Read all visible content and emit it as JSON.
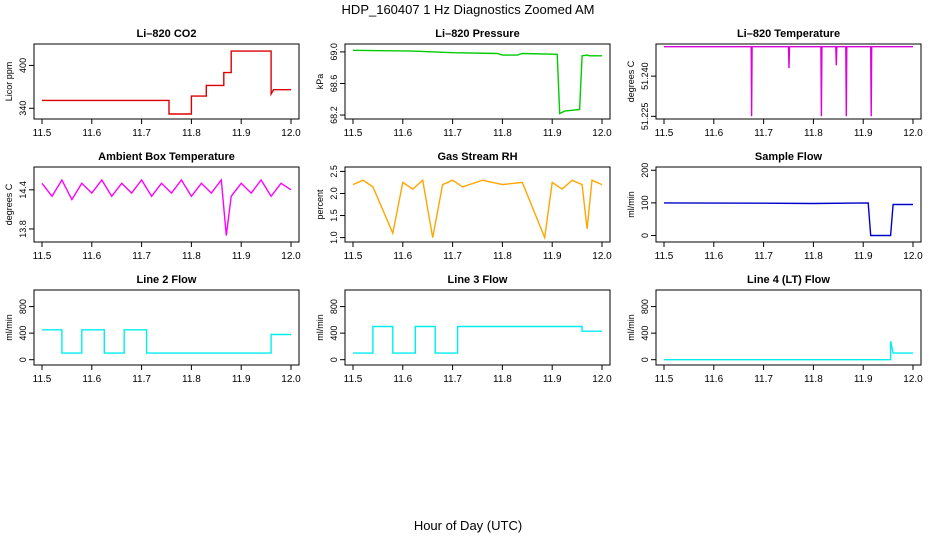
{
  "figure": {
    "title": "HDP_160407  1 Hz Diagnostics Zoomed AM",
    "xlabel": "Hour of Day (UTC)"
  },
  "chart_data": [
    {
      "type": "line",
      "title": "Li–820 CO2",
      "xlabel": "",
      "ylabel": "Licor ppm",
      "xlim": [
        11.5,
        12.0
      ],
      "ylim": [
        325,
        430
      ],
      "xticks": [
        "11.5",
        "11.6",
        "11.7",
        "11.8",
        "11.9",
        "12.0"
      ],
      "yticks": [
        "340",
        "400"
      ],
      "grid": false,
      "color": "#dd0000",
      "series": [
        {
          "points": [
            [
              11.5,
              351
            ],
            [
              11.755,
              351
            ],
            [
              11.755,
              332
            ],
            [
              11.8,
              332
            ],
            [
              11.8,
              357
            ],
            [
              11.83,
              357
            ],
            [
              11.83,
              372
            ],
            [
              11.865,
              372
            ],
            [
              11.865,
              390
            ],
            [
              11.88,
              390
            ],
            [
              11.88,
              420
            ],
            [
              11.96,
              420
            ],
            [
              11.96,
              360
            ],
            [
              11.965,
              366
            ],
            [
              12.0,
              366
            ]
          ]
        }
      ]
    },
    {
      "type": "line",
      "title": "Li–820 Pressure",
      "xlabel": "",
      "ylabel": "kPa",
      "xlim": [
        11.5,
        12.0
      ],
      "ylim": [
        68.15,
        69.1
      ],
      "xticks": [
        "11.5",
        "11.6",
        "11.7",
        "11.8",
        "11.9",
        "12.0"
      ],
      "yticks": [
        "68.2",
        "68.6",
        "69.0"
      ],
      "grid": false,
      "color": "#00cc00",
      "series": [
        {
          "points": [
            [
              11.5,
              69.02
            ],
            [
              11.62,
              69.01
            ],
            [
              11.7,
              68.99
            ],
            [
              11.79,
              68.98
            ],
            [
              11.8,
              68.96
            ],
            [
              11.83,
              68.96
            ],
            [
              11.84,
              68.98
            ],
            [
              11.91,
              68.97
            ],
            [
              11.915,
              68.22
            ],
            [
              11.925,
              68.25
            ],
            [
              11.955,
              68.27
            ],
            [
              11.96,
              68.95
            ],
            [
              11.97,
              68.96
            ],
            [
              11.975,
              68.95
            ],
            [
              12.0,
              68.95
            ]
          ]
        }
      ]
    },
    {
      "type": "line",
      "title": "Li–820 Temperature",
      "xlabel": "",
      "ylabel": "degrees C",
      "xlim": [
        11.5,
        12.0
      ],
      "ylim": [
        51.224,
        51.252
      ],
      "xticks": [
        "11.5",
        "11.6",
        "11.7",
        "11.8",
        "11.9",
        "12.0"
      ],
      "yticks": [
        "51.225",
        "51.240"
      ],
      "grid": false,
      "color": "#dd00dd",
      "series": [
        {
          "points": [
            [
              11.5,
              51.251
            ],
            [
              11.675,
              51.251
            ],
            [
              11.676,
              51.225
            ],
            [
              11.677,
              51.251
            ],
            [
              11.75,
              51.251
            ],
            [
              11.751,
              51.243
            ],
            [
              11.752,
              51.251
            ],
            [
              11.815,
              51.251
            ],
            [
              11.816,
              51.225
            ],
            [
              11.817,
              51.251
            ],
            [
              11.845,
              51.251
            ],
            [
              11.846,
              51.244
            ],
            [
              11.847,
              51.251
            ],
            [
              11.865,
              51.251
            ],
            [
              11.866,
              51.225
            ],
            [
              11.867,
              51.251
            ],
            [
              11.915,
              51.251
            ],
            [
              11.916,
              51.225
            ],
            [
              11.917,
              51.251
            ],
            [
              12.0,
              51.251
            ]
          ]
        }
      ]
    },
    {
      "type": "line",
      "title": "Ambient Box Temperature",
      "xlabel": "",
      "ylabel": "degrees C",
      "xlim": [
        11.5,
        12.0
      ],
      "ylim": [
        13.6,
        14.75
      ],
      "xticks": [
        "11.5",
        "11.6",
        "11.7",
        "11.8",
        "11.9",
        "12.0"
      ],
      "yticks": [
        "13.8",
        "14.4"
      ],
      "grid": false,
      "color": "#ff00ff",
      "series": [
        {
          "points": [
            [
              11.5,
              14.5
            ],
            [
              11.52,
              14.3
            ],
            [
              11.54,
              14.55
            ],
            [
              11.56,
              14.25
            ],
            [
              11.58,
              14.5
            ],
            [
              11.6,
              14.35
            ],
            [
              11.62,
              14.55
            ],
            [
              11.64,
              14.3
            ],
            [
              11.66,
              14.5
            ],
            [
              11.68,
              14.35
            ],
            [
              11.7,
              14.55
            ],
            [
              11.72,
              14.3
            ],
            [
              11.74,
              14.5
            ],
            [
              11.76,
              14.35
            ],
            [
              11.78,
              14.55
            ],
            [
              11.8,
              14.3
            ],
            [
              11.82,
              14.5
            ],
            [
              11.84,
              14.35
            ],
            [
              11.86,
              14.55
            ],
            [
              11.87,
              13.7
            ],
            [
              11.88,
              14.3
            ],
            [
              11.9,
              14.5
            ],
            [
              11.92,
              14.35
            ],
            [
              11.94,
              14.55
            ],
            [
              11.96,
              14.3
            ],
            [
              11.98,
              14.5
            ],
            [
              12.0,
              14.4
            ]
          ]
        }
      ]
    },
    {
      "type": "line",
      "title": "Gas Stream RH",
      "xlabel": "",
      "ylabel": "percent",
      "xlim": [
        11.5,
        12.0
      ],
      "ylim": [
        0.9,
        2.6
      ],
      "xticks": [
        "11.5",
        "11.6",
        "11.7",
        "11.8",
        "11.9",
        "12.0"
      ],
      "yticks": [
        "1.0",
        "1.5",
        "2.0",
        "2.5"
      ],
      "grid": false,
      "color": "#ffa500",
      "series": [
        {
          "points": [
            [
              11.5,
              2.2
            ],
            [
              11.52,
              2.3
            ],
            [
              11.54,
              2.15
            ],
            [
              11.58,
              1.1
            ],
            [
              11.6,
              2.25
            ],
            [
              11.62,
              2.1
            ],
            [
              11.64,
              2.3
            ],
            [
              11.66,
              1.0
            ],
            [
              11.68,
              2.2
            ],
            [
              11.7,
              2.3
            ],
            [
              11.72,
              2.15
            ],
            [
              11.76,
              2.3
            ],
            [
              11.8,
              2.2
            ],
            [
              11.84,
              2.25
            ],
            [
              11.885,
              1.0
            ],
            [
              11.9,
              2.25
            ],
            [
              11.92,
              2.1
            ],
            [
              11.94,
              2.3
            ],
            [
              11.96,
              2.2
            ],
            [
              11.97,
              1.2
            ],
            [
              11.98,
              2.3
            ],
            [
              12.0,
              2.2
            ]
          ]
        }
      ]
    },
    {
      "type": "line",
      "title": "Sample Flow",
      "xlabel": "",
      "ylabel": "ml/min",
      "xlim": [
        11.5,
        12.0
      ],
      "ylim": [
        -20,
        210
      ],
      "xticks": [
        "11.5",
        "11.6",
        "11.7",
        "11.8",
        "11.9",
        "12.0"
      ],
      "yticks": [
        "0",
        "100",
        "200"
      ],
      "grid": false,
      "color": "#0000cc",
      "series": [
        {
          "points": [
            [
              11.5,
              100
            ],
            [
              11.7,
              99
            ],
            [
              11.8,
              98
            ],
            [
              11.91,
              100
            ],
            [
              11.915,
              0
            ],
            [
              11.955,
              0
            ],
            [
              11.96,
              95
            ],
            [
              12.0,
              95
            ]
          ]
        }
      ]
    },
    {
      "type": "line",
      "title": "Line 2 Flow",
      "xlabel": "",
      "ylabel": "ml/min",
      "xlim": [
        11.5,
        12.0
      ],
      "ylim": [
        -80,
        1050
      ],
      "xticks": [
        "11.5",
        "11.6",
        "11.7",
        "11.8",
        "11.9",
        "12.0"
      ],
      "yticks": [
        "0",
        "400",
        "800"
      ],
      "grid": false,
      "color": "#00eeee",
      "series": [
        {
          "points": [
            [
              11.5,
              450
            ],
            [
              11.54,
              450
            ],
            [
              11.54,
              100
            ],
            [
              11.58,
              100
            ],
            [
              11.58,
              450
            ],
            [
              11.625,
              450
            ],
            [
              11.625,
              100
            ],
            [
              11.665,
              100
            ],
            [
              11.665,
              450
            ],
            [
              11.71,
              450
            ],
            [
              11.71,
              100
            ],
            [
              11.96,
              100
            ],
            [
              11.96,
              380
            ],
            [
              12.0,
              380
            ]
          ]
        }
      ]
    },
    {
      "type": "line",
      "title": "Line 3 Flow",
      "xlabel": "",
      "ylabel": "ml/min",
      "xlim": [
        11.5,
        12.0
      ],
      "ylim": [
        -80,
        1050
      ],
      "xticks": [
        "11.5",
        "11.6",
        "11.7",
        "11.8",
        "11.9",
        "12.0"
      ],
      "yticks": [
        "0",
        "400",
        "800"
      ],
      "grid": false,
      "color": "#00eeee",
      "series": [
        {
          "points": [
            [
              11.5,
              100
            ],
            [
              11.54,
              100
            ],
            [
              11.54,
              500
            ],
            [
              11.58,
              500
            ],
            [
              11.58,
              100
            ],
            [
              11.625,
              100
            ],
            [
              11.625,
              500
            ],
            [
              11.665,
              500
            ],
            [
              11.665,
              100
            ],
            [
              11.71,
              100
            ],
            [
              11.71,
              500
            ],
            [
              11.96,
              500
            ],
            [
              11.96,
              430
            ],
            [
              12.0,
              430
            ]
          ]
        }
      ]
    },
    {
      "type": "line",
      "title": "Line 4 (LT) Flow",
      "xlabel": "",
      "ylabel": "ml/min",
      "xlim": [
        11.5,
        12.0
      ],
      "ylim": [
        -80,
        1050
      ],
      "xticks": [
        "11.5",
        "11.6",
        "11.7",
        "11.8",
        "11.9",
        "12.0"
      ],
      "yticks": [
        "0",
        "400",
        "800"
      ],
      "grid": false,
      "color": "#00eeee",
      "series": [
        {
          "points": [
            [
              11.5,
              0
            ],
            [
              11.955,
              0
            ],
            [
              11.955,
              280
            ],
            [
              11.96,
              100
            ],
            [
              12.0,
              100
            ]
          ]
        }
      ]
    }
  ]
}
